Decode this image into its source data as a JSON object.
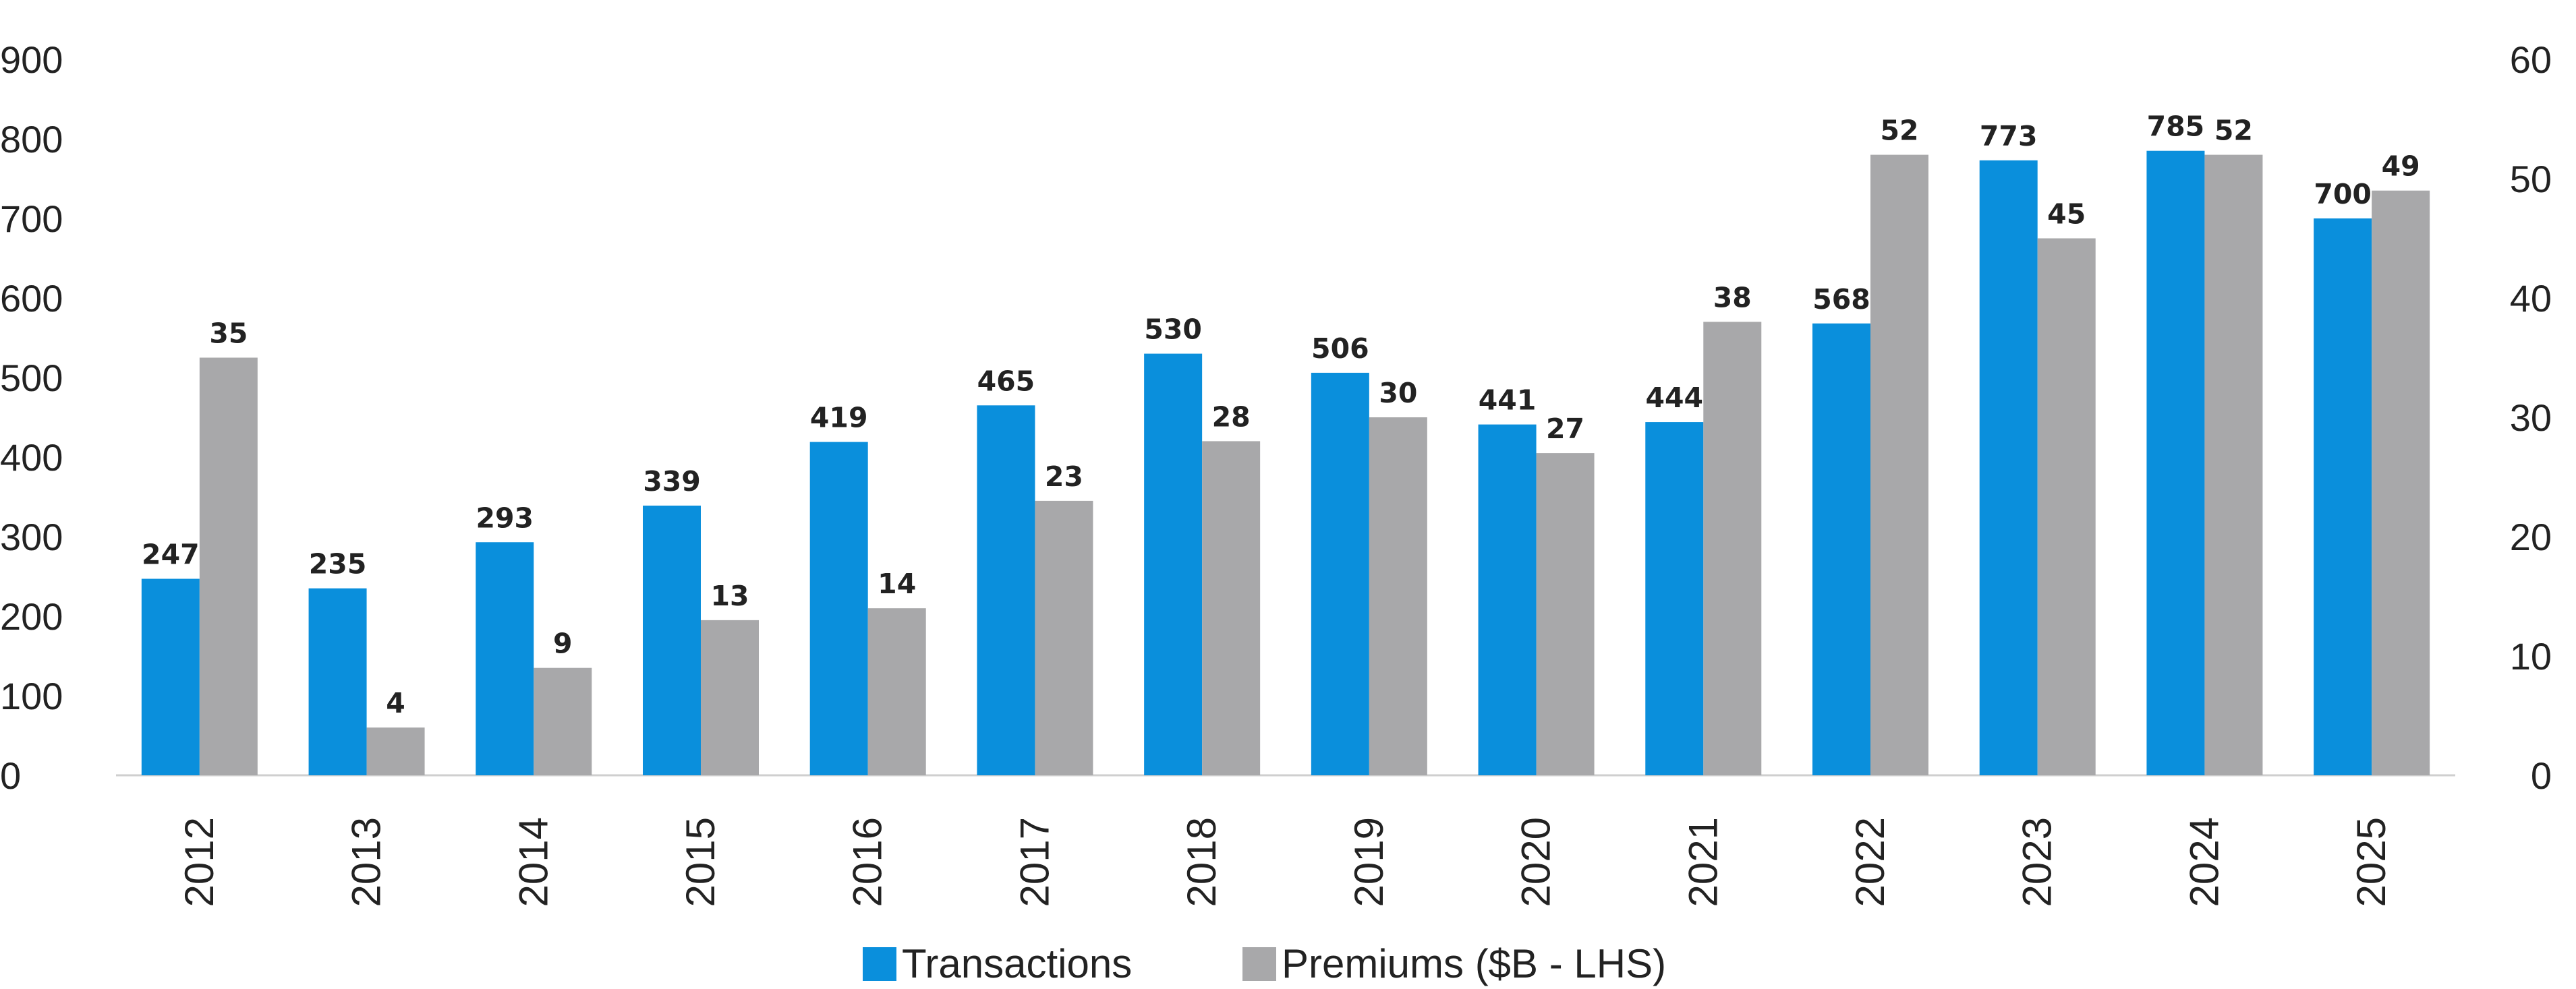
{
  "chart_data": {
    "type": "bar",
    "title": "",
    "xlabel": "",
    "ylabel_left": "",
    "ylabel_right": "",
    "categories": [
      "2012",
      "2013",
      "2014",
      "2015",
      "2016",
      "2017",
      "2018",
      "2019",
      "2020",
      "2021",
      "2022",
      "2023",
      "2024",
      "2025"
    ],
    "series": [
      {
        "name": "Transactions",
        "axis": "left",
        "color": "#0A8FDC",
        "values": [
          247,
          235,
          293,
          339,
          419,
          465,
          530,
          506,
          441,
          444,
          568,
          773,
          785,
          700
        ]
      },
      {
        "name": "Premiums ($B - LHS)",
        "axis": "right",
        "color": "#A8A8AA",
        "values": [
          35,
          4,
          9,
          13,
          14,
          23,
          28,
          30,
          27,
          38,
          52,
          45,
          52,
          49
        ]
      }
    ],
    "y_left": {
      "min": 0,
      "max": 900,
      "ticks": [
        "0",
        "100",
        "200",
        "300",
        "400",
        "500",
        "600",
        "700",
        "800",
        "900"
      ]
    },
    "y_right": {
      "min": 0,
      "max": 60,
      "ticks": [
        "0",
        "10",
        "20",
        "30",
        "40",
        "50",
        "60"
      ]
    },
    "grid": false,
    "legend_position": "bottom-center"
  }
}
